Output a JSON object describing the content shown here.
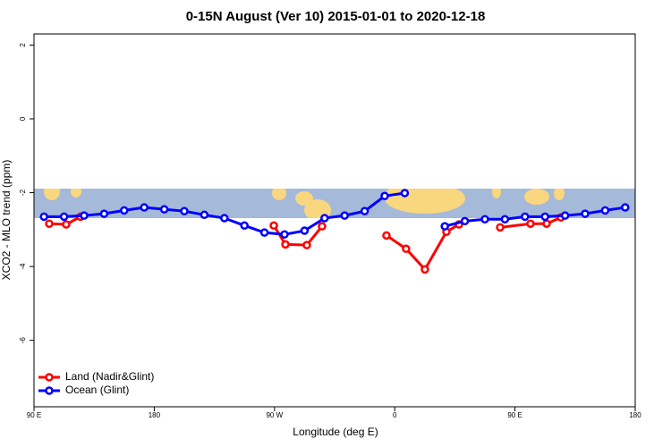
{
  "chart_data": {
    "type": "line",
    "title": "0-15N August (Ver 10)   2015-01-01 to 2020-12-18",
    "x_label": "Longitude (deg E)",
    "y_label": "XCO2 - MLO trend (ppm)",
    "xlim": [
      90,
      540
    ],
    "ylim": [
      -7.8,
      2.3
    ],
    "xticks": [
      {
        "value": 90,
        "label": "90 E"
      },
      180,
      {
        "value": 270,
        "label": "90 W"
      },
      {
        "value": 360,
        "label": "0"
      },
      {
        "value": 450,
        "label": "90 E"
      },
      {
        "value": 540,
        "label": "180"
      }
    ],
    "yticks": [
      2,
      0,
      -2,
      -4,
      -6
    ],
    "legend": "bottom-left",
    "series": [
      {
        "name": "Land (Nadir&Glint)",
        "color": "#ff0000",
        "x": [
          101.4,
          114.1,
          124.8,
          null,
          269.5,
          278.2,
          294.2,
          305.6,
          null,
          353.8,
          368.5,
          382.6,
          398.7,
          408.1,
          null,
          438.9,
          461.6,
          473.7,
          484.4
        ],
        "values": [
          -2.84,
          -2.86,
          -2.65,
          null,
          -2.89,
          -3.4,
          -3.42,
          -2.91,
          null,
          -3.16,
          -3.52,
          -4.08,
          -3.06,
          -2.86,
          null,
          -2.94,
          -2.84,
          -2.84,
          -2.67
        ]
      },
      {
        "name": "Ocean (Glint)",
        "color": "#0000ff",
        "x": [
          97.5,
          112.5,
          127.5,
          142.5,
          157.5,
          172.5,
          187.5,
          202.5,
          217.5,
          232.5,
          247.5,
          262.5,
          277.5,
          292.5,
          307.5,
          322.5,
          337.5,
          352.5,
          367.5,
          null,
          397.5,
          412.5,
          427.5,
          442.5,
          457.5,
          472.5,
          487.5,
          502.5,
          517.5,
          532.5
        ],
        "values": [
          -2.65,
          -2.65,
          -2.62,
          -2.57,
          -2.48,
          -2.4,
          -2.45,
          -2.5,
          -2.6,
          -2.69,
          -2.89,
          -3.08,
          -3.13,
          -3.03,
          -2.69,
          -2.62,
          -2.5,
          -2.09,
          -2.01,
          null,
          -2.91,
          -2.77,
          -2.72,
          -2.72,
          -2.65,
          -2.65,
          -2.62,
          -2.57,
          -2.48,
          -2.4
        ]
      }
    ]
  }
}
